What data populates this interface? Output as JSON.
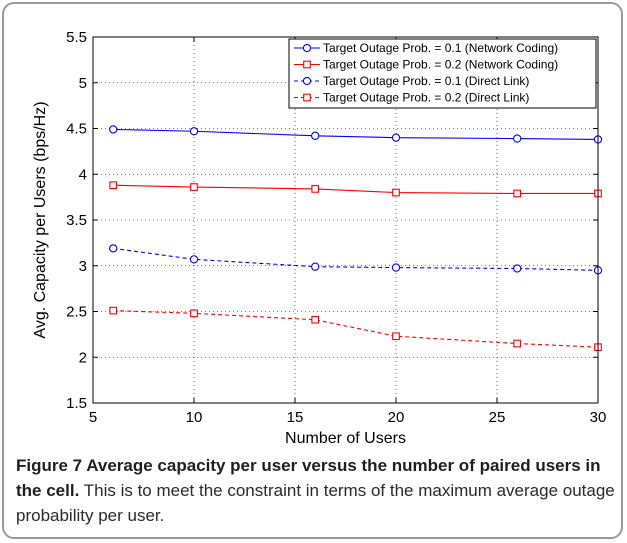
{
  "chart_data": {
    "type": "line",
    "xlabel": "Number of Users",
    "ylabel": "Avg. Capacity per Users (bps/Hz)",
    "xlim": [
      5,
      30
    ],
    "ylim": [
      1.5,
      5.5
    ],
    "xticks": [
      5,
      10,
      15,
      20,
      25,
      30
    ],
    "yticks": [
      1.5,
      2,
      2.5,
      3,
      3.5,
      4,
      4.5,
      5,
      5.5
    ],
    "grid": true,
    "legend_position": "top-right",
    "series": [
      {
        "name": "Target Outage Prob. = 0.1 (Network Coding)",
        "color": "#0000ff",
        "dash": "solid",
        "marker": "circle",
        "x": [
          6,
          10,
          16,
          20,
          26,
          30
        ],
        "y": [
          4.49,
          4.47,
          4.42,
          4.4,
          4.39,
          4.38
        ]
      },
      {
        "name": "Target Outage Prob. = 0.2 (Network Coding)",
        "color": "#ff0000",
        "dash": "solid",
        "marker": "square",
        "x": [
          6,
          10,
          16,
          20,
          26,
          30
        ],
        "y": [
          3.88,
          3.86,
          3.84,
          3.8,
          3.79,
          3.79
        ]
      },
      {
        "name": "Target Outage Prob. = 0.1 (Direct Link)",
        "color": "#0000ff",
        "dash": "dashed",
        "marker": "circle",
        "x": [
          6,
          10,
          16,
          20,
          26,
          30
        ],
        "y": [
          3.19,
          3.07,
          2.99,
          2.98,
          2.97,
          2.95
        ]
      },
      {
        "name": "Target Outage Prob. = 0.2 (Direct Link)",
        "color": "#ff0000",
        "dash": "dashed",
        "marker": "square",
        "x": [
          6,
          10,
          16,
          20,
          26,
          30
        ],
        "y": [
          2.51,
          2.48,
          2.41,
          2.23,
          2.15,
          2.11
        ]
      }
    ]
  },
  "caption": {
    "title": "Figure 7 Average capacity per user versus the number of paired users in the cell.",
    "body": " This is to meet the constraint in terms of the maximum average outage probability per user."
  }
}
